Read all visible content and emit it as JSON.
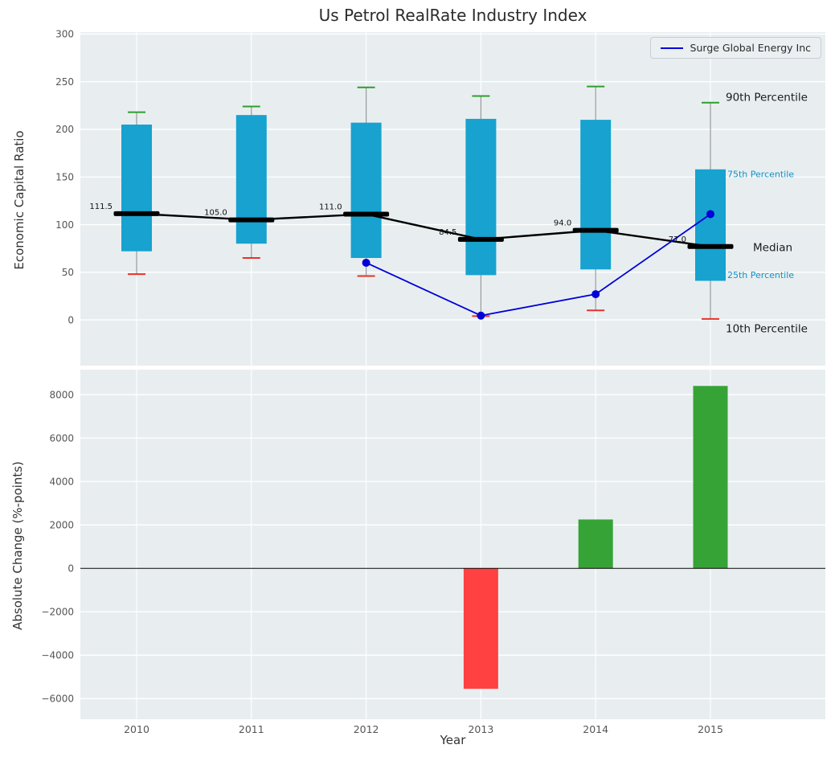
{
  "title": "Us Petrol RealRate Industry Index",
  "legend": {
    "label": "Surge Global Energy Inc",
    "position": "upper right"
  },
  "colors": {
    "box_fill": "#17a2cf",
    "whisker": "#999999",
    "cap_high": "#2ca02c",
    "cap_low": "#e53228",
    "median": "#000000",
    "series_line": "#0000d8",
    "bar_positive": "#36a336",
    "bar_negative": "#ff4141",
    "plot_bg": "#e8eef0",
    "grid": "#ffffff",
    "tick_text": "#555555",
    "annotation_dark": "#1a1a1a",
    "annotation_cyan": "#1293c8"
  },
  "chart_data": [
    {
      "type": "box",
      "title": "Us Petrol RealRate Industry Index",
      "ylabel": "Economic Capital Ratio",
      "ylim": [
        -48,
        302
      ],
      "yticks": [
        0,
        50,
        100,
        150,
        200,
        250,
        300
      ],
      "grid": true,
      "categories": [
        "2010",
        "2011",
        "2012",
        "2013",
        "2014",
        "2015"
      ],
      "boxes": [
        {
          "year": "2010",
          "p10": 48,
          "p25": 72,
          "median": 111.5,
          "p75": 205,
          "p90": 218
        },
        {
          "year": "2011",
          "p10": 65,
          "p25": 80,
          "median": 105.0,
          "p75": 215,
          "p90": 224
        },
        {
          "year": "2012",
          "p10": 46,
          "p25": 65,
          "median": 111.0,
          "p75": 207,
          "p90": 244
        },
        {
          "year": "2013",
          "p10": 4,
          "p25": 47,
          "median": 84.5,
          "p75": 211,
          "p90": 235
        },
        {
          "year": "2014",
          "p10": 10,
          "p25": 53,
          "median": 94.0,
          "p75": 210,
          "p90": 245
        },
        {
          "year": "2015",
          "p10": 1,
          "p25": 41,
          "median": 77.0,
          "p75": 158,
          "p90": 228
        }
      ],
      "median_labels": [
        "111.5",
        "105.0",
        "111.0",
        "84.5",
        "94.0",
        "77.0"
      ],
      "series": [
        {
          "name": "Surge Global Energy Inc",
          "x": [
            "2012",
            "2013",
            "2014",
            "2015"
          ],
          "values": [
            60,
            4.5,
            27,
            111
          ]
        }
      ],
      "annotations": [
        {
          "label": "90th Percentile",
          "value": 234,
          "x": 903,
          "color": "#1a1a1a",
          "size": 13.5
        },
        {
          "label": "75th Percentile",
          "value": 153,
          "x": 905,
          "color": "#1293c8",
          "size": 11
        },
        {
          "label": "Median",
          "value": 76,
          "x": 937,
          "color": "#1a1a1a",
          "size": 13.5
        },
        {
          "label": "25th Percentile",
          "value": 47,
          "x": 905,
          "color": "#1293c8",
          "size": 11
        },
        {
          "label": "10th Percentile",
          "value": -9,
          "x": 903,
          "color": "#1a1a1a",
          "size": 13.5
        }
      ]
    },
    {
      "type": "bar",
      "ylabel": "Absolute Change (%-points)",
      "xlabel": "Year",
      "ylim": [
        -6950,
        9150
      ],
      "yticks": [
        -6000,
        -4000,
        -2000,
        0,
        2000,
        4000,
        6000,
        8000
      ],
      "grid": true,
      "categories": [
        "2010",
        "2011",
        "2012",
        "2013",
        "2014",
        "2015"
      ],
      "values": [
        null,
        null,
        null,
        -5550,
        2250,
        8400
      ]
    }
  ]
}
